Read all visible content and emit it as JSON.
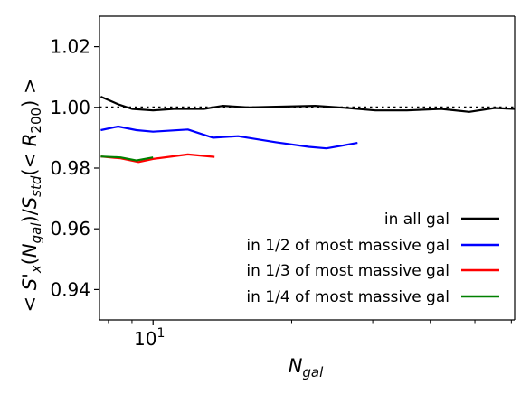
{
  "chart_data": {
    "type": "line",
    "title": "",
    "xlabel_main": "N",
    "xlabel_sub": "gal",
    "ylabel": "< S'x(Ngal)/Sstd(< R200) >",
    "xscale": "log",
    "xlim": [
      7.65,
      61
    ],
    "ylim": [
      0.93,
      1.03
    ],
    "yticks": [
      0.94,
      0.96,
      0.98,
      1.0,
      1.02
    ],
    "ytick_labels": [
      "0.94",
      "0.96",
      "0.98",
      "1.00",
      "1.02"
    ],
    "xticks": [
      10
    ],
    "xtick_label_base": "10",
    "xtick_label_exp": "1",
    "reference_line": {
      "y": 1.0,
      "style": "dotted",
      "color": "#000000"
    },
    "legend_position": "lower right",
    "series": [
      {
        "name": "in all gal",
        "color": "#000000",
        "x": [
          7.7,
          8.4,
          9.0,
          10.0,
          11.1,
          12.9,
          14.2,
          16.1,
          18.5,
          22.5,
          26.5,
          30.4,
          35.6,
          42.2,
          48.6,
          55.2,
          61.0
        ],
        "y": [
          1.0035,
          1.001,
          0.9995,
          0.999,
          0.9995,
          0.9995,
          1.0005,
          1.0,
          1.0002,
          1.0005,
          0.9998,
          0.999,
          0.999,
          0.9995,
          0.9985,
          0.9998,
          0.9995
        ]
      },
      {
        "name": "in 1/2 of most massive gal",
        "color": "#0000ff",
        "x": [
          7.7,
          8.4,
          9.2,
          10.0,
          11.9,
          13.5,
          15.3,
          18.5,
          21.8,
          23.8,
          27.8
        ],
        "y": [
          0.9925,
          0.9937,
          0.9925,
          0.992,
          0.9927,
          0.99,
          0.9905,
          0.9885,
          0.987,
          0.9865,
          0.9883
        ]
      },
      {
        "name": "in 1/3 of most massive gal",
        "color": "#ff0000",
        "x": [
          7.7,
          8.5,
          9.3,
          10.0,
          11.9,
          13.6
        ],
        "y": [
          0.9838,
          0.9832,
          0.982,
          0.983,
          0.9845,
          0.9837
        ]
      },
      {
        "name": "in 1/4 of most massive gal",
        "color": "#008000",
        "x": [
          7.7,
          8.5,
          9.2,
          10.0
        ],
        "y": [
          0.9838,
          0.9835,
          0.9825,
          0.9835
        ]
      }
    ]
  }
}
